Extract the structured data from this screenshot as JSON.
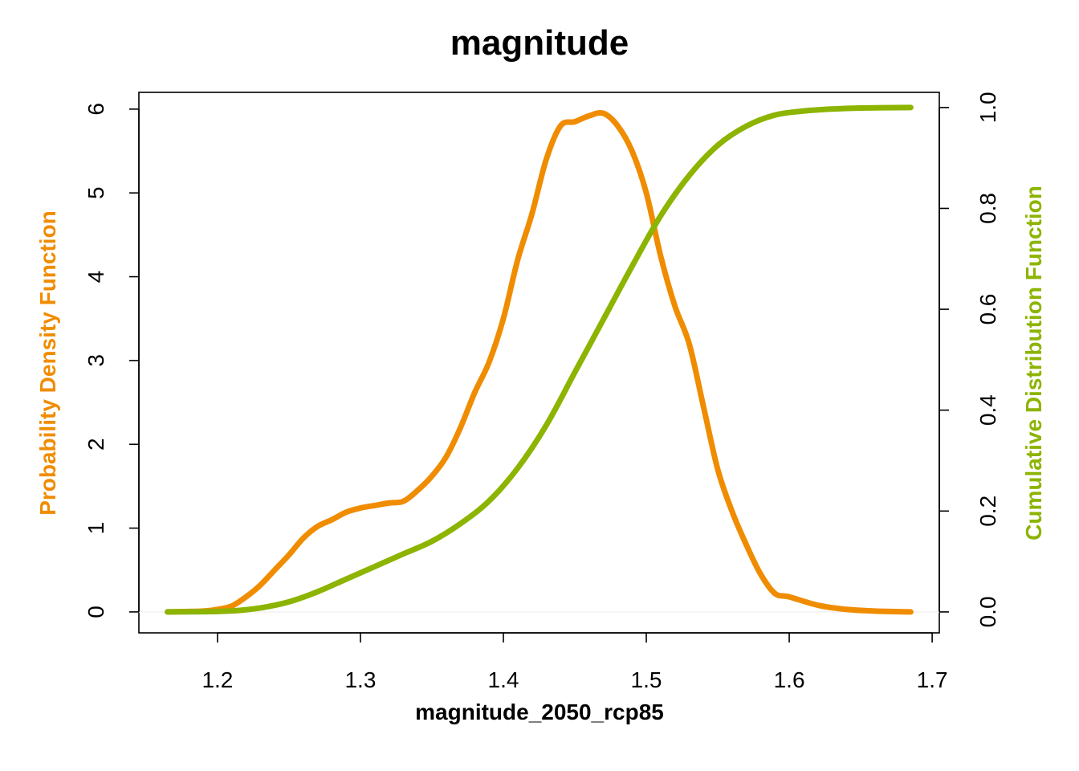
{
  "chart_data": {
    "type": "line",
    "title": "magnitude",
    "xlabel": "magnitude_2050_rcp85",
    "ylabel_left": "Probability Density Function",
    "ylabel_right": "Cumulative Distribution Function",
    "xlim": [
      1.145,
      1.705
    ],
    "ylim_left": [
      -0.25,
      6.2
    ],
    "ylim_right": [
      -0.0415,
      1.03
    ],
    "x_ticks": [
      "1.2",
      "1.3",
      "1.4",
      "1.5",
      "1.6",
      "1.7"
    ],
    "y_left_ticks": [
      "0",
      "1",
      "2",
      "3",
      "4",
      "5",
      "6"
    ],
    "y_right_ticks": [
      "0.0",
      "0.2",
      "0.4",
      "0.6",
      "0.8",
      "1.0"
    ],
    "grid": false,
    "colors": {
      "pdf": "#f08c00",
      "cdf": "#8cb400"
    },
    "series": [
      {
        "name": "Probability Density Function",
        "axis": "left",
        "x": [
          1.165,
          1.18,
          1.19,
          1.2,
          1.21,
          1.22,
          1.23,
          1.24,
          1.25,
          1.26,
          1.27,
          1.28,
          1.29,
          1.3,
          1.31,
          1.32,
          1.33,
          1.34,
          1.35,
          1.36,
          1.37,
          1.38,
          1.39,
          1.4,
          1.41,
          1.42,
          1.43,
          1.44,
          1.45,
          1.46,
          1.47,
          1.48,
          1.49,
          1.5,
          1.51,
          1.52,
          1.53,
          1.54,
          1.55,
          1.56,
          1.57,
          1.58,
          1.59,
          1.6,
          1.62,
          1.64,
          1.66,
          1.685
        ],
        "y": [
          0,
          0.005,
          0.01,
          0.03,
          0.07,
          0.18,
          0.32,
          0.5,
          0.68,
          0.88,
          1.02,
          1.1,
          1.19,
          1.24,
          1.27,
          1.3,
          1.32,
          1.45,
          1.62,
          1.85,
          2.2,
          2.62,
          2.98,
          3.5,
          4.2,
          4.75,
          5.4,
          5.8,
          5.85,
          5.92,
          5.95,
          5.8,
          5.5,
          5.0,
          4.25,
          3.65,
          3.2,
          2.45,
          1.7,
          1.2,
          0.8,
          0.45,
          0.22,
          0.18,
          0.08,
          0.03,
          0.01,
          0
        ]
      },
      {
        "name": "Cumulative Distribution Function",
        "axis": "right",
        "x": [
          1.165,
          1.19,
          1.21,
          1.23,
          1.25,
          1.27,
          1.29,
          1.31,
          1.33,
          1.35,
          1.37,
          1.39,
          1.41,
          1.43,
          1.45,
          1.47,
          1.49,
          1.51,
          1.53,
          1.55,
          1.57,
          1.59,
          1.61,
          1.63,
          1.65,
          1.685
        ],
        "y": [
          0,
          0.0005,
          0.002,
          0.008,
          0.02,
          0.04,
          0.065,
          0.09,
          0.115,
          0.14,
          0.175,
          0.22,
          0.285,
          0.37,
          0.475,
          0.58,
          0.685,
          0.785,
          0.865,
          0.925,
          0.963,
          0.985,
          0.993,
          0.997,
          0.999,
          1.0
        ]
      }
    ]
  }
}
